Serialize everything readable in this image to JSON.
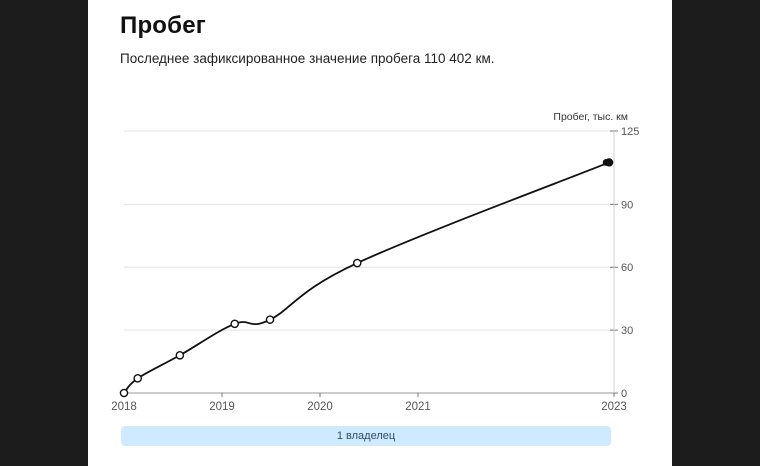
{
  "card": {
    "title": "Пробег",
    "subtitle": "Последнее зафиксированное значение пробега 110 402 км."
  },
  "owner_bar": {
    "label": "1 владелец",
    "color": "#cfeaff"
  },
  "chart_data": {
    "type": "line",
    "title": "",
    "xlabel": "",
    "ylabel": "Пробег, тыс. км",
    "x_ticks": [
      "2018",
      "2019",
      "2020",
      "2021",
      "2023"
    ],
    "y_ticks": [
      0,
      30,
      60,
      90,
      125
    ],
    "ylim": [
      0,
      125
    ],
    "grid": true,
    "x_unit": "year",
    "series": [
      {
        "x": [
          2018.0,
          2018.14,
          2018.57,
          2019.13,
          2019.49,
          2020.38,
          2022.95
        ],
        "values": [
          0,
          7,
          18,
          33,
          35,
          62,
          110
        ],
        "open_markers": [
          true,
          true,
          true,
          true,
          true,
          true,
          false
        ]
      }
    ],
    "colors": {
      "line": "#111111",
      "grid": "#e3e3e3",
      "axis_text": "#555555",
      "background": "#ffffff"
    }
  }
}
